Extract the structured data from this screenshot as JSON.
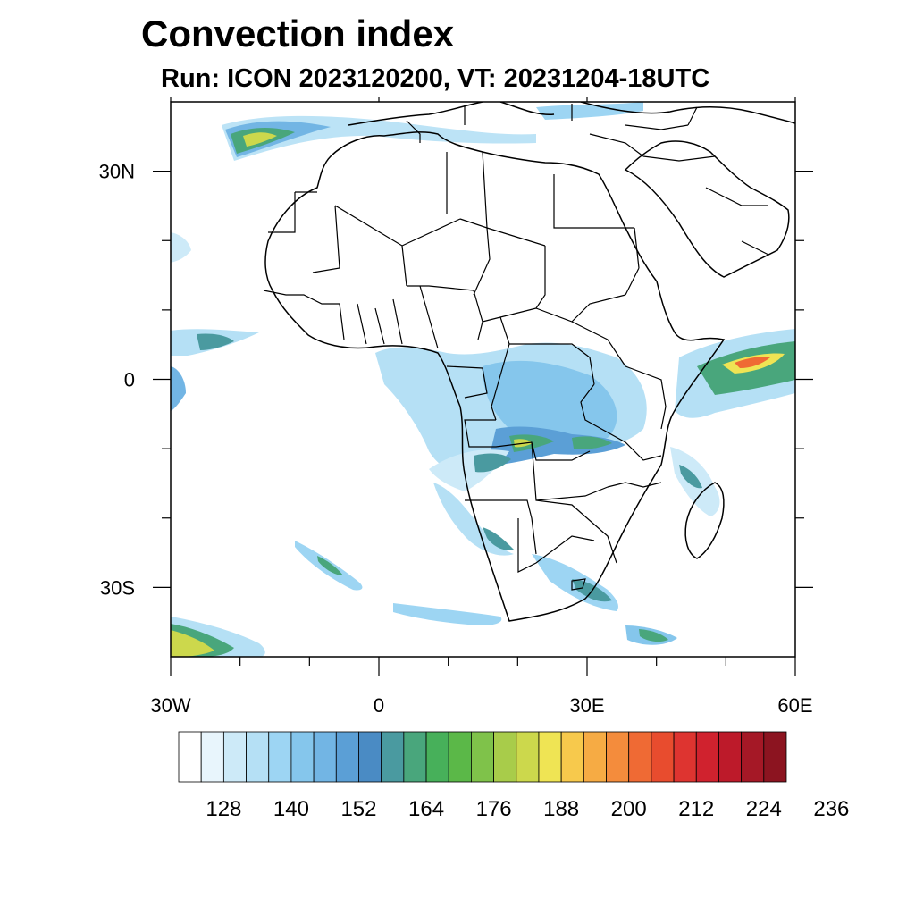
{
  "title": "Convection index",
  "subtitle": "Run: ICON 2023120200,  VT: 20231204-18UTC",
  "map": {
    "lon_range": [
      -30,
      60
    ],
    "lat_range": [
      -40,
      40
    ],
    "lon_ticks": [
      {
        "value": -30,
        "label": "30W"
      },
      {
        "value": 0,
        "label": "0"
      },
      {
        "value": 30,
        "label": "30E"
      },
      {
        "value": 60,
        "label": "60E"
      }
    ],
    "lat_ticks": [
      {
        "value": 30,
        "label": "30N"
      },
      {
        "value": 0,
        "label": "0"
      },
      {
        "value": -30,
        "label": "30S"
      }
    ],
    "minor_lon_ticks": [
      -20,
      -10,
      10,
      20,
      40,
      50
    ],
    "minor_lat_ticks": [
      20,
      10,
      -10,
      -20
    ]
  },
  "colorbar": {
    "colors": [
      "#ffffff",
      "#e8f5fc",
      "#cdeaf8",
      "#b5e0f5",
      "#9dd5f3",
      "#85c6ec",
      "#72b5e4",
      "#5b9fd6",
      "#4a8bc4",
      "#4a9aa0",
      "#49a67c",
      "#47b05a",
      "#5bb848",
      "#7fc24a",
      "#a8cc4a",
      "#ccd84c",
      "#efe454",
      "#f7c94c",
      "#f6ab44",
      "#f48c3c",
      "#ef6a34",
      "#e84c2e",
      "#de3430",
      "#d0222e",
      "#bd1a2a",
      "#a51826",
      "#8c1420"
    ],
    "labels": [
      "128",
      "140",
      "152",
      "164",
      "176",
      "188",
      "200",
      "212",
      "224",
      "236"
    ]
  }
}
